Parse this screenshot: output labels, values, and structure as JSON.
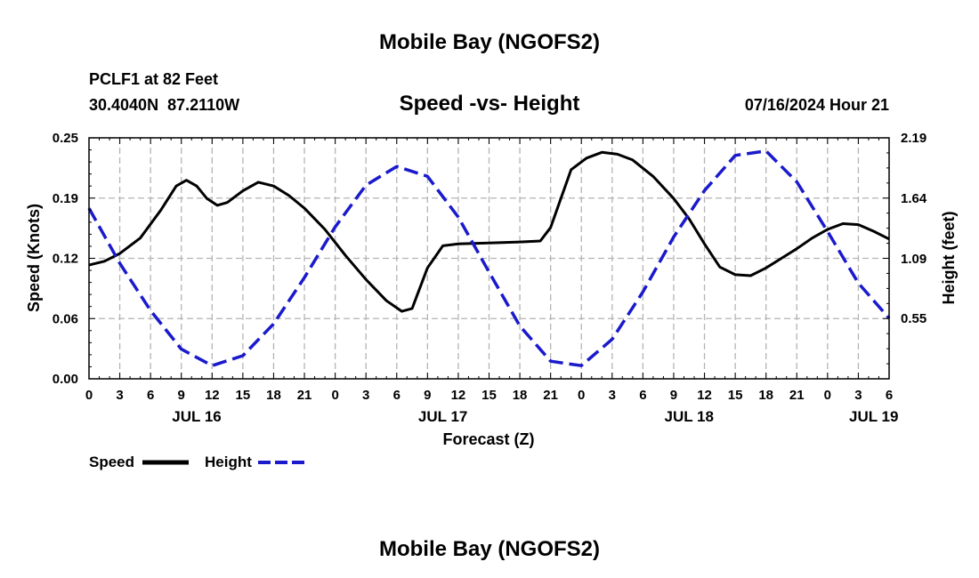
{
  "header": {
    "title": "Mobile Bay (NGOFS2)",
    "station": "PCLF1 at 82 Feet",
    "coords": "30.4040N  87.2110W",
    "subtitle": "Speed -vs- Height",
    "datetime": "07/16/2024 Hour 21",
    "footer_title": "Mobile Bay (NGOFS2)"
  },
  "colors": {
    "speed": "#000000",
    "height": "#1a1acc",
    "grid": "#b4b4b4"
  },
  "chart_data": {
    "type": "line",
    "title": "Speed -vs- Height",
    "xlabel": "Forecast (Z)",
    "ylabel": "Speed (Knots)",
    "y2label": "Height (feet)",
    "x_unit": "hours since 2024-07-16 00Z",
    "xlim": [
      0,
      78
    ],
    "ylim": [
      0,
      0.25
    ],
    "y2lim": [
      0,
      2.19
    ],
    "x_ticks": [
      0,
      3,
      6,
      9,
      12,
      15,
      18,
      21,
      24,
      27,
      30,
      33,
      36,
      39,
      42,
      45,
      48,
      51,
      54,
      57,
      60,
      63,
      66,
      69,
      72,
      75,
      78
    ],
    "x_tick_labels": [
      "0",
      "3",
      "6",
      "9",
      "12",
      "15",
      "18",
      "21",
      "0",
      "3",
      "6",
      "9",
      "12",
      "15",
      "18",
      "21",
      "0",
      "3",
      "6",
      "9",
      "12",
      "15",
      "18",
      "21",
      "0",
      "3",
      "6"
    ],
    "y_ticks": [
      0,
      0.0625,
      0.125,
      0.1875,
      0.25
    ],
    "y_tick_labels": [
      "0.00",
      "0.06",
      "0.12",
      "0.19",
      "0.25"
    ],
    "y2_ticks": [
      0.55,
      1.09,
      1.64,
      2.19
    ],
    "y2_tick_labels": [
      "0.55",
      "1.09",
      "1.64",
      "2.19"
    ],
    "date_labels": [
      {
        "x": 10.5,
        "label": "JUL 16"
      },
      {
        "x": 34.5,
        "label": "JUL 17"
      },
      {
        "x": 58.5,
        "label": "JUL 18"
      },
      {
        "x": 76.5,
        "label": "JUL 19"
      }
    ],
    "legend_position": "bottom-left",
    "series": [
      {
        "name": "Speed",
        "axis": "left",
        "style": "solid",
        "x": [
          0,
          1.5,
          3,
          5,
          7,
          8.5,
          9.5,
          10.5,
          11.5,
          12.5,
          13.5,
          15,
          16.5,
          18,
          19.5,
          21,
          23,
          25,
          27,
          29,
          30.5,
          31.5,
          32,
          33,
          34.5,
          36,
          39,
          42,
          44,
          45,
          46,
          47,
          48.5,
          50,
          51.5,
          53,
          55,
          57,
          58.5,
          60,
          61.5,
          63,
          64.5,
          66,
          67.5,
          69,
          70.5,
          72,
          73.5,
          75,
          76.5,
          78
        ],
        "values": [
          0.118,
          0.122,
          0.13,
          0.146,
          0.175,
          0.2,
          0.206,
          0.2,
          0.187,
          0.18,
          0.183,
          0.195,
          0.204,
          0.2,
          0.19,
          0.177,
          0.155,
          0.128,
          0.103,
          0.081,
          0.07,
          0.073,
          0.087,
          0.115,
          0.138,
          0.14,
          0.141,
          0.142,
          0.143,
          0.157,
          0.187,
          0.217,
          0.229,
          0.235,
          0.233,
          0.227,
          0.21,
          0.187,
          0.166,
          0.14,
          0.116,
          0.108,
          0.107,
          0.115,
          0.125,
          0.135,
          0.146,
          0.155,
          0.161,
          0.16,
          0.153,
          0.145
        ]
      },
      {
        "name": "Height",
        "axis": "right",
        "style": "dashed",
        "x": [
          0,
          3,
          6,
          9,
          12,
          15,
          18,
          21,
          24,
          27,
          30,
          33,
          36,
          39,
          42,
          45,
          48,
          51,
          54,
          57,
          60,
          63,
          66,
          69,
          72,
          75,
          78
        ],
        "values": [
          1.55,
          1.05,
          0.62,
          0.27,
          0.12,
          0.21,
          0.5,
          0.92,
          1.38,
          1.76,
          1.93,
          1.84,
          1.47,
          0.97,
          0.48,
          0.16,
          0.12,
          0.36,
          0.79,
          1.29,
          1.71,
          2.03,
          2.07,
          1.79,
          1.34,
          0.87,
          0.55
        ]
      }
    ]
  }
}
